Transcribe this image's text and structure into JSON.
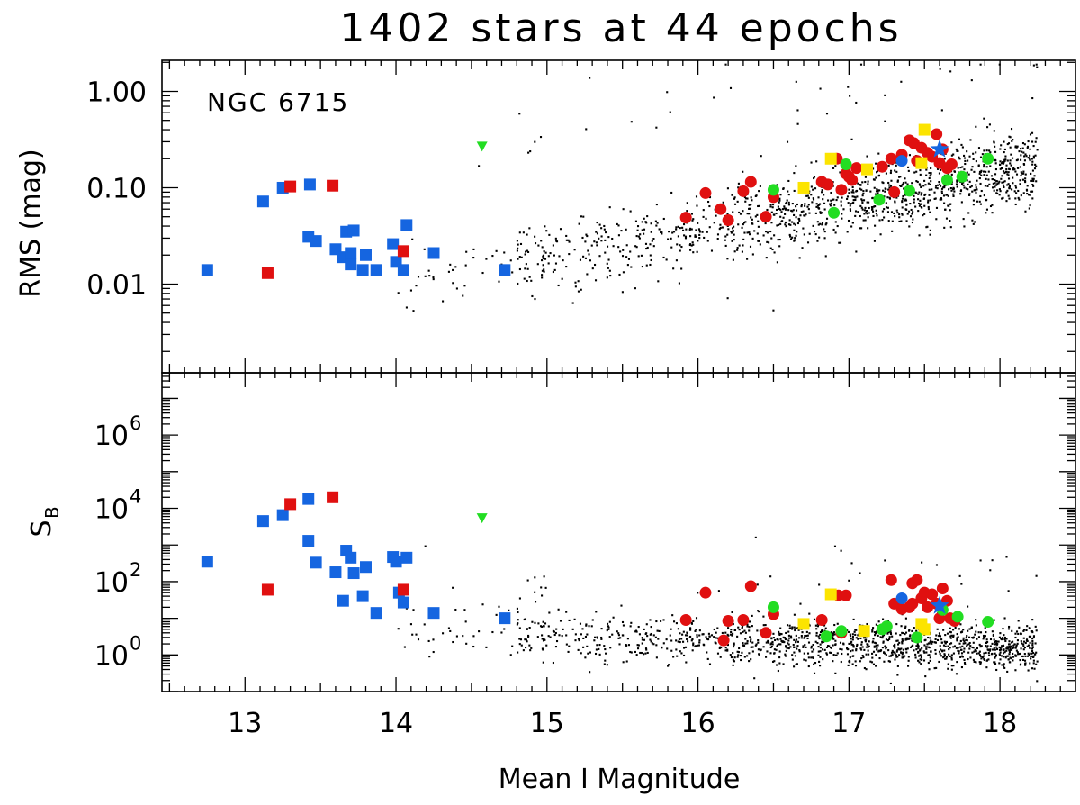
{
  "title": "1402 stars at 44 epochs",
  "colors": {
    "background": "#ffffff",
    "axis": "#000000",
    "field": "#000000",
    "blue": "#1565e0",
    "red": "#e01010",
    "yellow": "#fce400",
    "green": "#22dd22"
  },
  "chart_data": [
    {
      "type": "scatter",
      "panel": "top",
      "title": "1402 stars at 44 epochs",
      "annotation": "NGC 6715",
      "xlabel": "Mean I Magnitude",
      "ylabel": "RMS (mag)",
      "yscale": "log",
      "xlim": [
        12.45,
        18.5
      ],
      "ylim": [
        0.0012,
        2.1
      ],
      "yticks": [
        0.01,
        0.1,
        1.0
      ],
      "ytick_labels": [
        "0.01",
        "0.10",
        "1.00"
      ],
      "series": [
        {
          "name": "field",
          "marker": "dot",
          "color": "#000000",
          "points": []
        },
        {
          "name": "blue-squares",
          "marker": "square",
          "color": "#1565e0",
          "points": [
            [
              12.75,
              0.014
            ],
            [
              13.12,
              0.072
            ],
            [
              13.25,
              0.1
            ],
            [
              13.42,
              0.031
            ],
            [
              13.43,
              0.108
            ],
            [
              13.47,
              0.028
            ],
            [
              13.6,
              0.023
            ],
            [
              13.65,
              0.019
            ],
            [
              13.67,
              0.035
            ],
            [
              13.7,
              0.021
            ],
            [
              13.72,
              0.036
            ],
            [
              13.7,
              0.016
            ],
            [
              13.78,
              0.014
            ],
            [
              13.8,
              0.02
            ],
            [
              13.87,
              0.014
            ],
            [
              13.98,
              0.026
            ],
            [
              14.0,
              0.017
            ],
            [
              14.05,
              0.014
            ],
            [
              14.07,
              0.041
            ],
            [
              14.25,
              0.021
            ],
            [
              14.72,
              0.014
            ]
          ]
        },
        {
          "name": "red-squares",
          "marker": "square",
          "color": "#e01010",
          "points": [
            [
              13.15,
              0.013
            ],
            [
              13.3,
              0.103
            ],
            [
              13.58,
              0.105
            ],
            [
              14.05,
              0.022
            ]
          ]
        },
        {
          "name": "green-triangle",
          "marker": "triangle-down",
          "color": "#22dd22",
          "points": [
            [
              14.57,
              0.27
            ]
          ]
        },
        {
          "name": "red-circles",
          "marker": "circle",
          "color": "#e01010",
          "points": [
            [
              15.92,
              0.049
            ],
            [
              16.05,
              0.088
            ],
            [
              16.15,
              0.06
            ],
            [
              16.2,
              0.046
            ],
            [
              16.3,
              0.092
            ],
            [
              16.35,
              0.115
            ],
            [
              16.45,
              0.05
            ],
            [
              16.5,
              0.08
            ],
            [
              16.82,
              0.115
            ],
            [
              16.86,
              0.108
            ],
            [
              16.95,
              0.095
            ],
            [
              16.98,
              0.14
            ],
            [
              17.0,
              0.13
            ],
            [
              17.02,
              0.12
            ],
            [
              17.05,
              0.16
            ],
            [
              17.22,
              0.165
            ],
            [
              17.28,
              0.2
            ],
            [
              17.3,
              0.09
            ],
            [
              17.35,
              0.22
            ],
            [
              17.4,
              0.31
            ],
            [
              17.43,
              0.29
            ],
            [
              17.45,
              0.19
            ],
            [
              17.48,
              0.26
            ],
            [
              17.52,
              0.23
            ],
            [
              17.55,
              0.21
            ],
            [
              17.58,
              0.36
            ],
            [
              17.6,
              0.18
            ],
            [
              17.62,
              0.25
            ],
            [
              17.65,
              0.16
            ],
            [
              17.68,
              0.175
            ],
            [
              16.92,
              0.2
            ]
          ]
        },
        {
          "name": "yellow-squares",
          "marker": "square",
          "color": "#fce400",
          "points": [
            [
              16.88,
              0.2
            ],
            [
              17.12,
              0.155
            ],
            [
              17.5,
              0.4
            ],
            [
              17.48,
              0.18
            ],
            [
              16.7,
              0.1
            ]
          ]
        },
        {
          "name": "green-circles",
          "marker": "circle",
          "color": "#22dd22",
          "points": [
            [
              16.5,
              0.095
            ],
            [
              16.9,
              0.055
            ],
            [
              16.98,
              0.175
            ],
            [
              17.2,
              0.075
            ],
            [
              17.4,
              0.093
            ],
            [
              17.65,
              0.12
            ],
            [
              17.75,
              0.13
            ],
            [
              17.92,
              0.2
            ]
          ]
        },
        {
          "name": "blue-circles",
          "marker": "circle",
          "color": "#1565e0",
          "points": [
            [
              17.35,
              0.19
            ]
          ]
        },
        {
          "name": "blue-star",
          "marker": "star",
          "color": "#1565e0",
          "points": [
            [
              17.6,
              0.25
            ]
          ]
        }
      ]
    },
    {
      "type": "scatter",
      "panel": "bottom",
      "xlabel": "Mean I Magnitude",
      "ylabel": "S",
      "ylabel_subscript": "B",
      "yscale": "log",
      "xlim": [
        12.45,
        18.5
      ],
      "ylim": [
        0.1,
        50000000.0
      ],
      "yticks": [
        1,
        100,
        10000,
        1000000
      ],
      "ytick_labels": [
        {
          "base": "10",
          "exp": "0"
        },
        {
          "base": "10",
          "exp": "2"
        },
        {
          "base": "10",
          "exp": "4"
        },
        {
          "base": "10",
          "exp": "6"
        }
      ],
      "xticks": [
        13,
        14,
        15,
        16,
        17,
        18
      ],
      "xtick_labels": [
        "13",
        "14",
        "15",
        "16",
        "17",
        "18"
      ],
      "series": [
        {
          "name": "field",
          "marker": "dot",
          "color": "#000000",
          "points": []
        },
        {
          "name": "blue-squares",
          "marker": "square",
          "color": "#1565e0",
          "points": [
            [
              12.75,
              350
            ],
            [
              13.12,
              4500
            ],
            [
              13.25,
              6500
            ],
            [
              13.42,
              18000
            ],
            [
              13.42,
              1300
            ],
            [
              13.47,
              330
            ],
            [
              13.6,
              180
            ],
            [
              13.65,
              30
            ],
            [
              13.67,
              700
            ],
            [
              13.7,
              450
            ],
            [
              13.72,
              170
            ],
            [
              13.8,
              250
            ],
            [
              13.78,
              40
            ],
            [
              13.87,
              14
            ],
            [
              13.98,
              470
            ],
            [
              14.0,
              350
            ],
            [
              14.02,
              50
            ],
            [
              14.05,
              27
            ],
            [
              14.07,
              450
            ],
            [
              14.25,
              14
            ],
            [
              14.72,
              10
            ]
          ]
        },
        {
          "name": "red-squares",
          "marker": "square",
          "color": "#e01010",
          "points": [
            [
              13.15,
              60
            ],
            [
              13.3,
              13000
            ],
            [
              13.58,
              20000
            ],
            [
              14.05,
              60
            ]
          ]
        },
        {
          "name": "green-triangle",
          "marker": "triangle-down",
          "color": "#22dd22",
          "points": [
            [
              14.57,
              5500
            ]
          ]
        },
        {
          "name": "red-circles",
          "marker": "circle",
          "color": "#e01010",
          "points": [
            [
              15.92,
              9
            ],
            [
              16.05,
              50
            ],
            [
              16.17,
              2.5
            ],
            [
              16.2,
              8.5
            ],
            [
              16.3,
              9
            ],
            [
              16.35,
              75
            ],
            [
              16.45,
              4
            ],
            [
              16.5,
              13
            ],
            [
              16.82,
              9
            ],
            [
              16.93,
              42
            ],
            [
              16.95,
              4
            ],
            [
              16.98,
              42
            ],
            [
              17.28,
              110
            ],
            [
              17.3,
              25
            ],
            [
              17.35,
              18
            ],
            [
              17.4,
              20
            ],
            [
              17.42,
              25
            ],
            [
              17.42,
              90
            ],
            [
              17.45,
              110
            ],
            [
              17.48,
              35
            ],
            [
              17.5,
              50
            ],
            [
              17.52,
              20
            ],
            [
              17.55,
              45
            ],
            [
              17.58,
              25
            ],
            [
              17.6,
              10
            ],
            [
              17.62,
              65
            ],
            [
              17.65,
              30
            ],
            [
              17.67,
              10
            ],
            [
              17.7,
              8.5
            ]
          ]
        },
        {
          "name": "yellow-squares",
          "marker": "square",
          "color": "#fce400",
          "points": [
            [
              16.7,
              7
            ],
            [
              16.88,
              45
            ],
            [
              17.1,
              4.5
            ],
            [
              17.48,
              7
            ],
            [
              17.5,
              5
            ]
          ]
        },
        {
          "name": "green-circles",
          "marker": "circle",
          "color": "#22dd22",
          "points": [
            [
              16.5,
              20
            ],
            [
              16.85,
              3.2
            ],
            [
              16.95,
              4.5
            ],
            [
              17.22,
              5
            ],
            [
              17.25,
              6
            ],
            [
              17.45,
              3
            ],
            [
              17.62,
              17
            ],
            [
              17.72,
              11
            ],
            [
              17.92,
              8
            ]
          ]
        },
        {
          "name": "blue-circles",
          "marker": "circle",
          "color": "#1565e0",
          "points": [
            [
              17.35,
              35
            ]
          ]
        },
        {
          "name": "blue-star",
          "marker": "star",
          "color": "#1565e0",
          "points": [
            [
              17.6,
              22
            ]
          ]
        }
      ]
    }
  ]
}
